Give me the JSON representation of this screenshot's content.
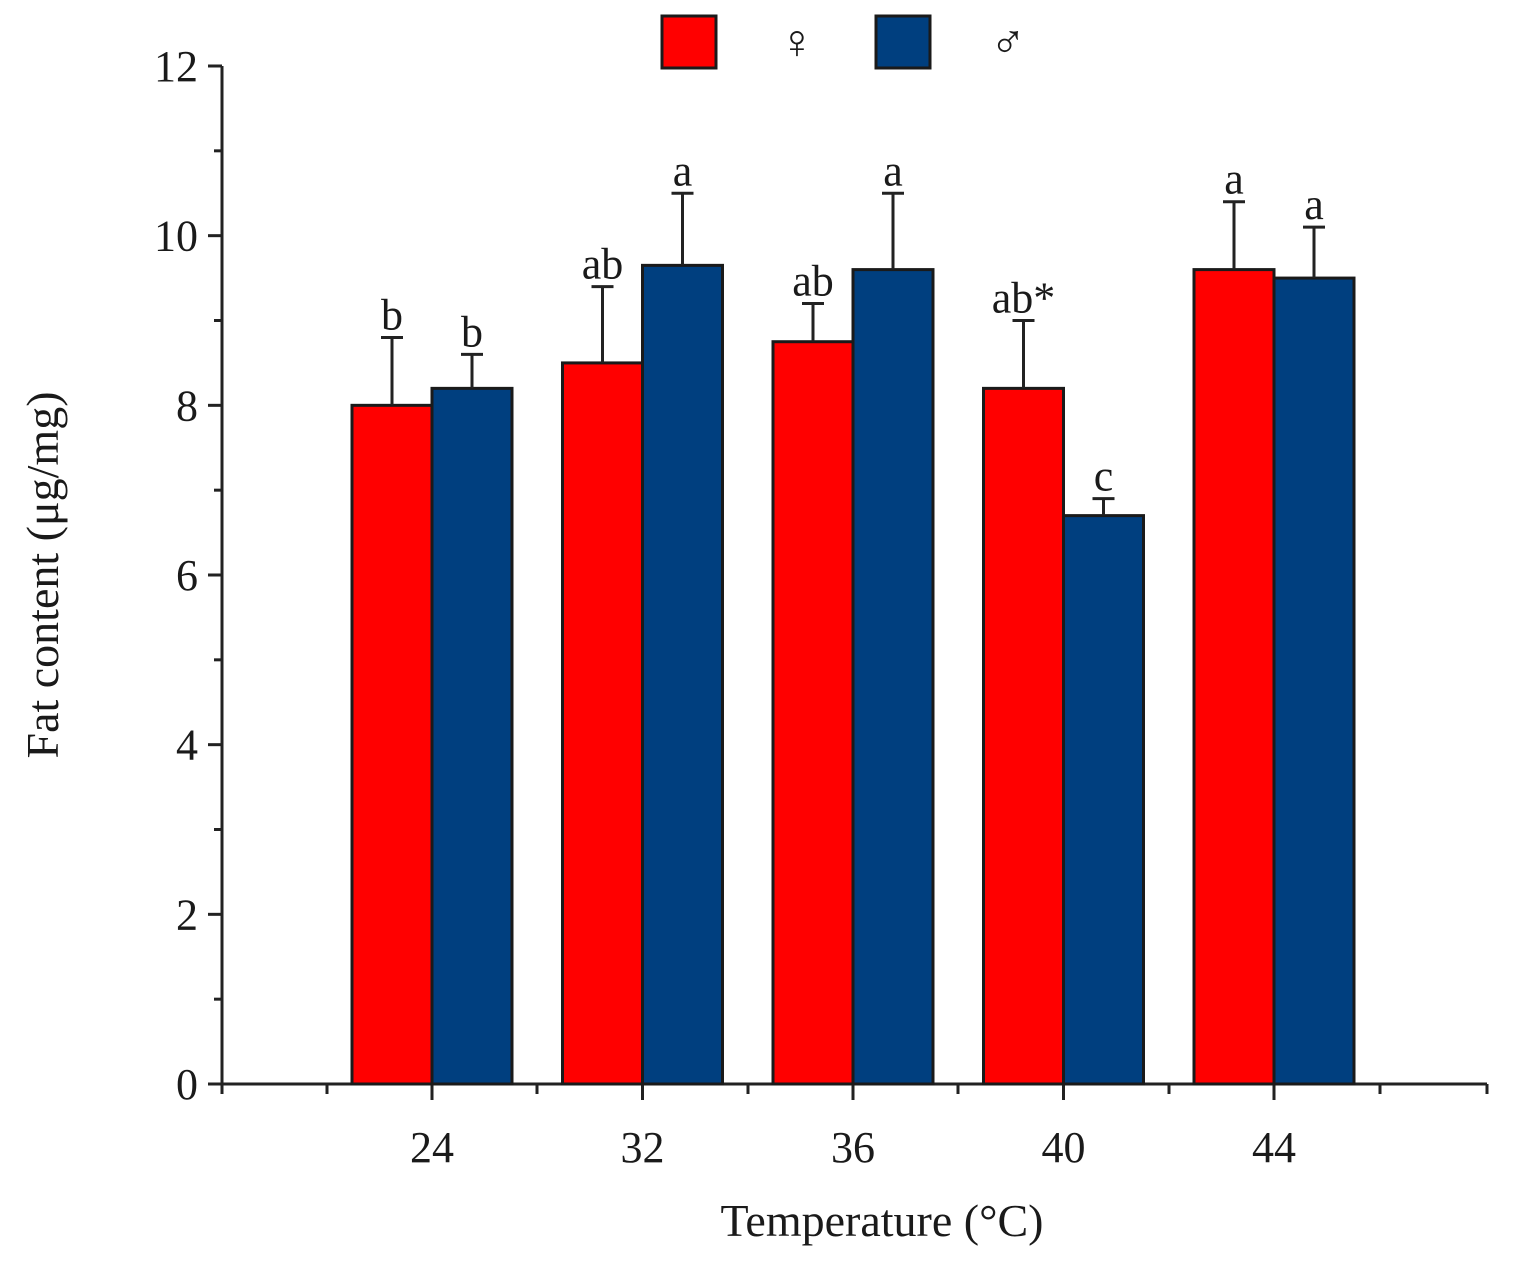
{
  "chart_data": {
    "type": "bar",
    "title": "",
    "xlabel": "Temperature (°C)",
    "ylabel": "Fat content (μg/mg)",
    "ylim": [
      0,
      12
    ],
    "yticks": [
      "0",
      "2",
      "4",
      "6",
      "8",
      "10",
      "12"
    ],
    "categories": [
      "24",
      "32",
      "36",
      "40",
      "44"
    ],
    "legend_position": "top-center",
    "series": [
      {
        "name": "♀",
        "color": "#ff0000",
        "values": [
          8.0,
          8.5,
          8.75,
          8.2,
          9.6
        ],
        "errors": [
          0.8,
          0.9,
          0.45,
          0.8,
          0.8
        ],
        "annotations": [
          "b",
          "ab",
          "ab",
          "ab*",
          "a"
        ]
      },
      {
        "name": "♂",
        "color": "#003f7f",
        "values": [
          8.2,
          9.65,
          9.6,
          6.7,
          9.5
        ],
        "errors": [
          0.4,
          0.85,
          0.9,
          0.2,
          0.6
        ],
        "annotations": [
          "b",
          "a",
          "a",
          "c",
          "a"
        ]
      }
    ]
  }
}
